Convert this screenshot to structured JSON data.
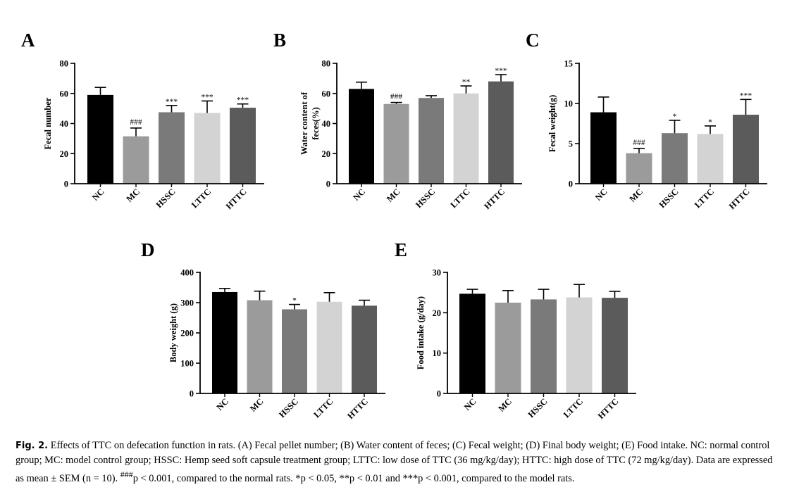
{
  "caption": {
    "label": "Fig. 2.",
    "text_main": " Effects of TTC on defecation function in rats. (A) Fecal pellet number; (B) Water content of feces; (C) Fecal weight; (D) Final body weight; (E) Food intake. NC: normal control group; MC: model control group; HSSC: Hemp seed soft capsule treatment group; LTTC: low dose of TTC (36 mg/kg/day); HTTC: high dose of TTC (72 mg/kg/day). Data are expressed as mean ± SEM (n = 10). ",
    "sup1": "###",
    "text_mid": "p < 0.001, compared to the normal rats. *p < 0.05, **p < 0.01 and ***p < 0.001, compared to the model rats."
  },
  "colors": {
    "NC": "#000000",
    "MC": "#9b9b9b",
    "HSSC": "#7a7a7a",
    "LTTC": "#d3d3d3",
    "HTTC": "#5b5b5b",
    "axis": "#000000"
  },
  "chart_data": [
    {
      "panel": "A",
      "type": "bar",
      "ylabel": "Fecal number",
      "ylim": [
        0,
        80
      ],
      "yticks": [
        0,
        20,
        40,
        60,
        80
      ],
      "categories": [
        "NC",
        "MC",
        "HSSC",
        "LTTC",
        "HTTC"
      ],
      "values": [
        59,
        31.5,
        47.5,
        47,
        50.5
      ],
      "errors": [
        5,
        5.5,
        4.5,
        8,
        2.5
      ],
      "significance": [
        "",
        "###",
        "***",
        "***",
        "***"
      ]
    },
    {
      "panel": "B",
      "type": "bar",
      "ylabel_lines": [
        "Water content of",
        "feces(%)"
      ],
      "ylim": [
        0,
        80
      ],
      "yticks": [
        0,
        20,
        40,
        60,
        80
      ],
      "categories": [
        "NC",
        "MC",
        "HSSC",
        "LTTC",
        "HTTC"
      ],
      "values": [
        63,
        53,
        57,
        60,
        68
      ],
      "errors": [
        4.5,
        1,
        1.5,
        5,
        4.5
      ],
      "significance": [
        "",
        "###",
        "",
        "**",
        "***"
      ]
    },
    {
      "panel": "C",
      "type": "bar",
      "ylabel": "Fecal weight(g)",
      "ylim": [
        0,
        15
      ],
      "yticks": [
        0,
        5,
        10,
        15
      ],
      "categories": [
        "NC",
        "MC",
        "HSSC",
        "LTTC",
        "HTTC"
      ],
      "values": [
        8.9,
        3.8,
        6.3,
        6.2,
        8.6
      ],
      "errors": [
        1.9,
        0.6,
        1.6,
        1.0,
        1.9
      ],
      "significance": [
        "",
        "###",
        "*",
        "*",
        "***"
      ]
    },
    {
      "panel": "D",
      "type": "bar",
      "ylabel": "Body weight (g)",
      "ylim": [
        0,
        400
      ],
      "yticks": [
        0,
        100,
        200,
        300,
        400
      ],
      "categories": [
        "NC",
        "MC",
        "HSSC",
        "LTTC",
        "HTTC"
      ],
      "values": [
        335,
        308,
        278,
        303,
        290
      ],
      "errors": [
        12,
        30,
        16,
        30,
        18
      ],
      "significance": [
        "",
        "",
        "*",
        "",
        ""
      ]
    },
    {
      "panel": "E",
      "type": "bar",
      "ylabel": "Food intake (g/day)",
      "ylim": [
        0,
        30
      ],
      "yticks": [
        0,
        10,
        20,
        30
      ],
      "categories": [
        "NC",
        "MC",
        "HSSC",
        "LTTC",
        "HTTC"
      ],
      "values": [
        24.7,
        22.5,
        23.3,
        23.8,
        23.7
      ],
      "errors": [
        1.1,
        3.0,
        2.5,
        3.2,
        1.6
      ],
      "significance": [
        "",
        "",
        "",
        "",
        ""
      ]
    }
  ]
}
